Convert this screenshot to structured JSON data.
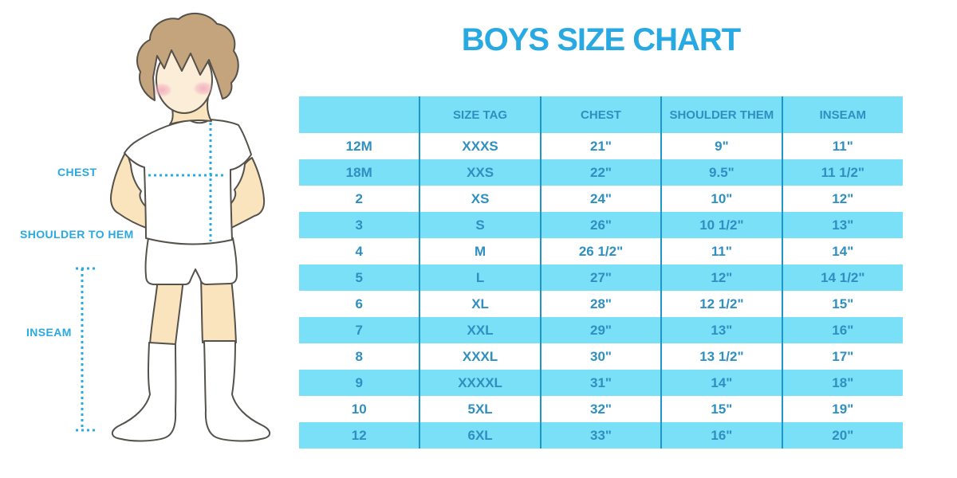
{
  "title": "BOYS SIZE CHART",
  "figure_labels": {
    "chest": "CHEST",
    "shoulder_to_hem": "SHOULDER TO HEM",
    "inseam": "INSEAM"
  },
  "colors": {
    "title_blue": "#29A9E1",
    "table_text_blue": "#2F8FC1",
    "row_cyan": "#79E0F8",
    "divider_blue": "#1E96C8",
    "dotted_line_blue": "#29ABE2",
    "skin": "#FAE4BE",
    "face_skin": "#FCEDD8",
    "hair_brown": "#C4A47C",
    "cheek_pink": "#F0A8BC",
    "outline_gray": "#55514B"
  },
  "chart_data": {
    "type": "table",
    "title": "BOYS SIZE CHART",
    "columns": [
      "",
      "SIZE TAG",
      "CHEST",
      "SHOULDER THEM",
      "INSEAM"
    ],
    "rows": [
      [
        "12M",
        "XXXS",
        "21\"",
        "9\"",
        "11\""
      ],
      [
        "18M",
        "XXS",
        "22\"",
        "9.5\"",
        "11 1/2\""
      ],
      [
        "2",
        "XS",
        "24\"",
        "10\"",
        "12\""
      ],
      [
        "3",
        "S",
        "26\"",
        "10 1/2\"",
        "13\""
      ],
      [
        "4",
        "M",
        "26 1/2\"",
        "11\"",
        "14\""
      ],
      [
        "5",
        "L",
        "27\"",
        "12\"",
        "14 1/2\""
      ],
      [
        "6",
        "XL",
        "28\"",
        "12 1/2\"",
        "15\""
      ],
      [
        "7",
        "XXL",
        "29\"",
        "13\"",
        "16\""
      ],
      [
        "8",
        "XXXL",
        "30\"",
        "13 1/2\"",
        "17\""
      ],
      [
        "9",
        "XXXXL",
        "31\"",
        "14\"",
        "18\""
      ],
      [
        "10",
        "5XL",
        "32\"",
        "15\"",
        "19\""
      ],
      [
        "12",
        "6XL",
        "33\"",
        "16\"",
        "20\""
      ]
    ]
  }
}
